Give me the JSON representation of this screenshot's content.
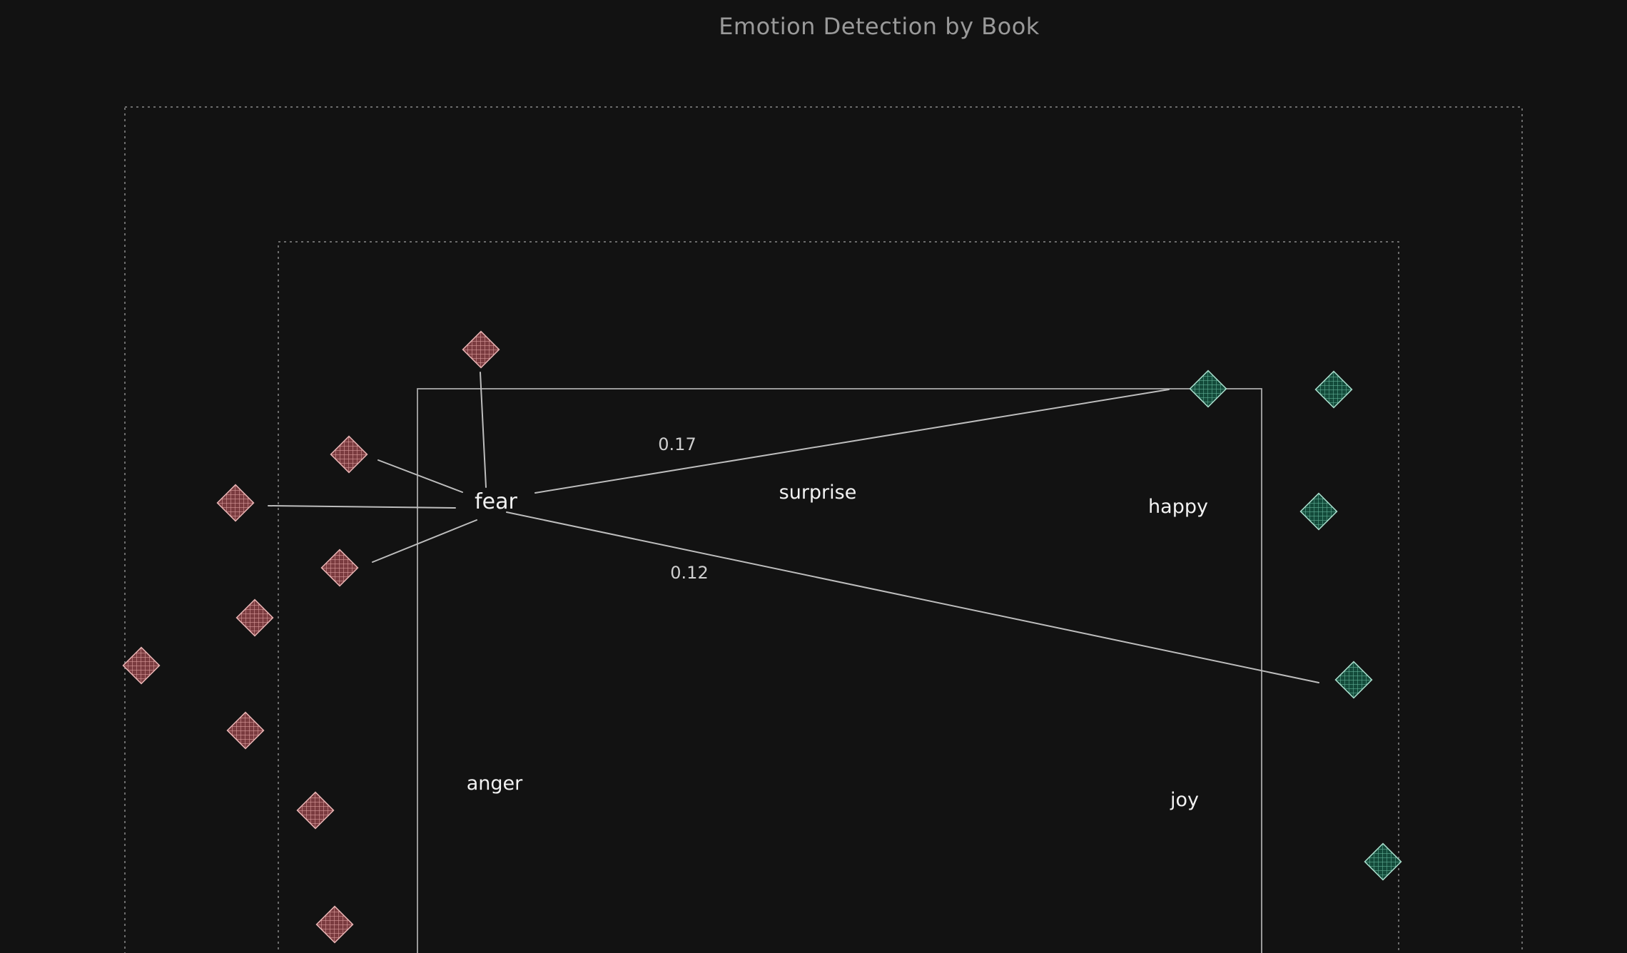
{
  "title": "Emotion Detection by Book",
  "colors": {
    "background": "#121212",
    "negative_fill": "#7a3b3f",
    "negative_stroke": "#e7b3b3",
    "positive_fill": "#134a3a",
    "positive_stroke": "#a8dccb",
    "line": "#bdbdbd"
  },
  "labels": {
    "fear": "fear",
    "surprise": "surprise",
    "happy": "happy",
    "anger": "anger",
    "joy": "joy"
  },
  "edge_weights": {
    "fear_to_top_right": "0.17",
    "fear_to_lower_right": "0.12"
  }
}
